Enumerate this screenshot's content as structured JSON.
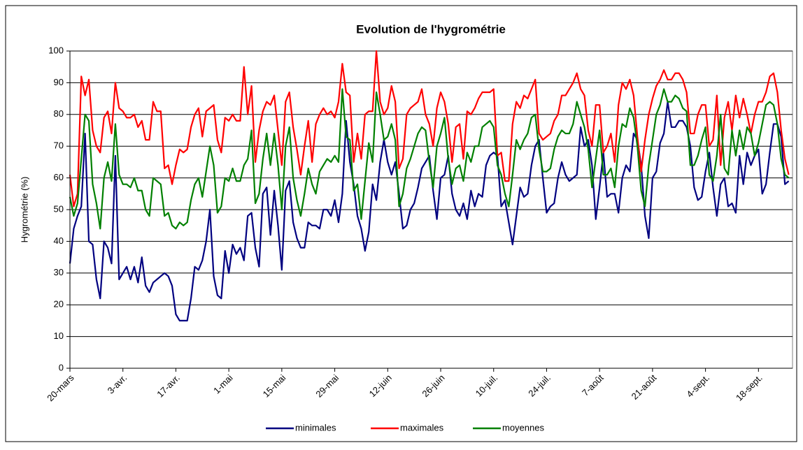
{
  "chart_data": {
    "type": "line",
    "title": "Evolution de l'hygrométrie",
    "y_label": "Hygrométrie (%)",
    "categories": [
      "20-mars",
      null,
      null,
      null,
      null,
      null,
      null,
      null,
      null,
      null,
      null,
      null,
      null,
      null,
      "3-avr.",
      null,
      null,
      null,
      null,
      null,
      null,
      null,
      null,
      null,
      null,
      null,
      null,
      null,
      "17-avr.",
      null,
      null,
      null,
      null,
      null,
      null,
      null,
      null,
      null,
      null,
      null,
      null,
      null,
      "1-mai",
      null,
      null,
      null,
      null,
      null,
      null,
      null,
      null,
      null,
      null,
      null,
      null,
      null,
      "15-mai",
      null,
      null,
      null,
      null,
      null,
      null,
      null,
      null,
      null,
      null,
      null,
      null,
      null,
      "29-mai",
      null,
      null,
      null,
      null,
      null,
      null,
      null,
      null,
      null,
      null,
      null,
      null,
      null,
      "12-juin",
      null,
      null,
      null,
      null,
      null,
      null,
      null,
      null,
      null,
      null,
      null,
      null,
      null,
      "26-juin",
      null,
      null,
      null,
      null,
      null,
      null,
      null,
      null,
      null,
      null,
      null,
      null,
      null,
      "10-juil.",
      null,
      null,
      null,
      null,
      null,
      null,
      null,
      null,
      null,
      null,
      null,
      null,
      null,
      "24-juil.",
      null,
      null,
      null,
      null,
      null,
      null,
      null,
      null,
      null,
      null,
      null,
      null,
      null,
      "7-août",
      null,
      null,
      null,
      null,
      null,
      null,
      null,
      null,
      null,
      null,
      null,
      null,
      null,
      "21-août",
      null,
      null,
      null,
      null,
      null,
      null,
      null,
      null,
      null,
      null,
      null,
      null,
      null,
      "4-sept.",
      null,
      null,
      null,
      null,
      null,
      null,
      null,
      null,
      null,
      null,
      null,
      null,
      null,
      "18-sept.",
      null,
      null,
      null,
      null,
      null,
      null,
      null,
      null
    ],
    "series": [
      {
        "name": "minimales",
        "color": "#000080",
        "values": [
          33,
          44,
          48,
          51,
          74,
          40,
          39,
          28,
          22,
          40,
          38,
          33,
          67,
          28,
          30,
          32,
          28,
          32,
          27,
          35,
          26,
          24,
          27,
          28,
          29,
          30,
          29,
          26,
          17,
          15,
          15,
          15,
          22,
          32,
          31,
          34,
          40,
          50,
          29,
          23,
          22,
          37,
          30,
          39,
          36,
          38,
          34,
          48,
          49,
          38,
          32,
          55,
          57,
          42,
          56,
          45,
          31,
          56,
          59,
          46,
          41,
          38,
          38,
          46,
          45,
          45,
          44,
          50,
          50,
          48,
          53,
          46,
          55,
          78,
          65,
          58,
          48,
          44,
          37,
          43,
          58,
          53,
          65,
          72,
          65,
          61,
          65,
          55,
          44,
          45,
          50,
          52,
          57,
          63,
          65,
          67,
          56,
          47,
          60,
          61,
          67,
          55,
          50,
          48,
          52,
          47,
          56,
          51,
          55,
          54,
          64,
          67,
          68,
          67,
          51,
          53,
          46,
          39,
          48,
          57,
          54,
          55,
          64,
          70,
          72,
          60,
          49,
          51,
          52,
          60,
          65,
          61,
          59,
          60,
          61,
          76,
          70,
          72,
          64,
          47,
          57,
          68,
          54,
          55,
          55,
          49,
          60,
          64,
          62,
          74,
          72,
          64,
          48,
          41,
          60,
          62,
          71,
          74,
          84,
          76,
          76,
          78,
          78,
          76,
          70,
          57,
          53,
          54,
          62,
          68,
          57,
          48,
          58,
          60,
          51,
          52,
          49,
          67,
          58,
          68,
          64,
          67,
          69,
          55,
          58,
          68,
          77,
          77,
          73,
          58,
          59
        ]
      },
      {
        "name": "maximales",
        "color": "#ff0000",
        "values": [
          61,
          51,
          55,
          92,
          86,
          91,
          75,
          70,
          68,
          79,
          81,
          74,
          90,
          82,
          81,
          79,
          79,
          80,
          76,
          78,
          72,
          72,
          84,
          81,
          81,
          63,
          64,
          58,
          64,
          69,
          68,
          69,
          76,
          80,
          82,
          73,
          81,
          82,
          83,
          72,
          68,
          79,
          78,
          80,
          78,
          78,
          95,
          80,
          89,
          65,
          75,
          81,
          84,
          83,
          86,
          75,
          64,
          84,
          87,
          76,
          69,
          61,
          70,
          78,
          65,
          77,
          80,
          82,
          80,
          81,
          79,
          84,
          96,
          87,
          86,
          65,
          74,
          66,
          80,
          81,
          81,
          100,
          84,
          80,
          82,
          89,
          84,
          63,
          66,
          80,
          82,
          83,
          84,
          88,
          80,
          77,
          70,
          82,
          87,
          84,
          77,
          65,
          76,
          77,
          66,
          81,
          80,
          82,
          85,
          87,
          87,
          87,
          88,
          67,
          68,
          59,
          59,
          77,
          84,
          82,
          86,
          85,
          88,
          91,
          74,
          72,
          73,
          74,
          78,
          80,
          86,
          86,
          88,
          90,
          93,
          88,
          86,
          75,
          70,
          83,
          83,
          68,
          70,
          74,
          65,
          83,
          90,
          88,
          91,
          86,
          73,
          62,
          72,
          80,
          85,
          89,
          91,
          94,
          91,
          91,
          93,
          93,
          91,
          87,
          74,
          74,
          80,
          83,
          83,
          70,
          72,
          86,
          64,
          79,
          84,
          75,
          86,
          79,
          85,
          80,
          74,
          80,
          84,
          84,
          87,
          92,
          93,
          87,
          75,
          66,
          61
        ]
      },
      {
        "name": "moyennes",
        "color": "#008000",
        "values": [
          54,
          48,
          52,
          66,
          80,
          78,
          58,
          52,
          44,
          60,
          65,
          59,
          77,
          61,
          58,
          58,
          57,
          60,
          56,
          56,
          50,
          48,
          60,
          59,
          58,
          48,
          49,
          45,
          44,
          46,
          45,
          46,
          53,
          58,
          60,
          54,
          62,
          70,
          64,
          49,
          51,
          60,
          59,
          63,
          59,
          59,
          64,
          66,
          75,
          52,
          55,
          66,
          74,
          64,
          74,
          64,
          50,
          70,
          76,
          60,
          53,
          48,
          55,
          63,
          58,
          55,
          62,
          64,
          66,
          65,
          67,
          65,
          88,
          73,
          72,
          56,
          58,
          47,
          59,
          71,
          65,
          87,
          80,
          72,
          73,
          77,
          72,
          51,
          55,
          63,
          66,
          70,
          74,
          76,
          75,
          65,
          57,
          70,
          74,
          79,
          66,
          58,
          63,
          64,
          59,
          68,
          65,
          70,
          70,
          76,
          77,
          78,
          76,
          64,
          61,
          55,
          51,
          61,
          72,
          69,
          72,
          74,
          79,
          80,
          69,
          62,
          62,
          63,
          69,
          73,
          75,
          74,
          74,
          77,
          84,
          80,
          76,
          69,
          57,
          66,
          75,
          61,
          61,
          63,
          57,
          70,
          77,
          76,
          82,
          79,
          70,
          56,
          51,
          64,
          72,
          80,
          83,
          88,
          84,
          84,
          86,
          85,
          82,
          81,
          64,
          64,
          67,
          72,
          76,
          61,
          59,
          67,
          80,
          63,
          61,
          75,
          67,
          75,
          69,
          76,
          74,
          67,
          71,
          77,
          83,
          84,
          83,
          77,
          66,
          61,
          60
        ]
      }
    ],
    "ylim": [
      0,
      100
    ],
    "yticks": [
      0,
      10,
      20,
      30,
      40,
      50,
      60,
      70,
      80,
      90,
      100
    ],
    "grid": true,
    "legend": "bottom"
  }
}
